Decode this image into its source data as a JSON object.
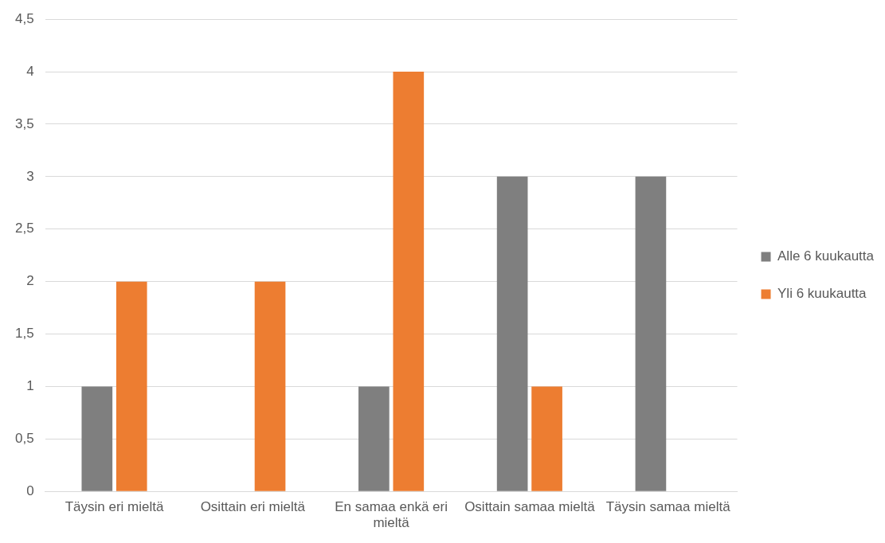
{
  "chart_data": {
    "type": "bar",
    "categories": [
      "Täysin eri mieltä",
      "Osittain eri mieltä",
      "En samaa enkä eri mieltä",
      "Osittain samaa mieltä",
      "Täysin samaa mieltä"
    ],
    "series": [
      {
        "name": "Alle 6 kuukautta",
        "color": "#7f7f7f",
        "values": [
          1,
          0,
          1,
          3,
          3
        ]
      },
      {
        "name": "Yli 6 kuukautta",
        "color": "#ed7d31",
        "values": [
          2,
          2,
          4,
          1,
          0
        ]
      }
    ],
    "ylim": [
      0,
      4.5
    ],
    "yticks": [
      0,
      {
        "value": 0.5,
        "label": "0,5"
      },
      1,
      {
        "value": 1.5,
        "label": "1,5"
      },
      2,
      {
        "value": 2.5,
        "label": "2,5"
      },
      3,
      {
        "value": 3.5,
        "label": "3,5"
      },
      4,
      {
        "value": 4.5,
        "label": "4,5"
      }
    ],
    "grid": "y",
    "legend": "right"
  }
}
